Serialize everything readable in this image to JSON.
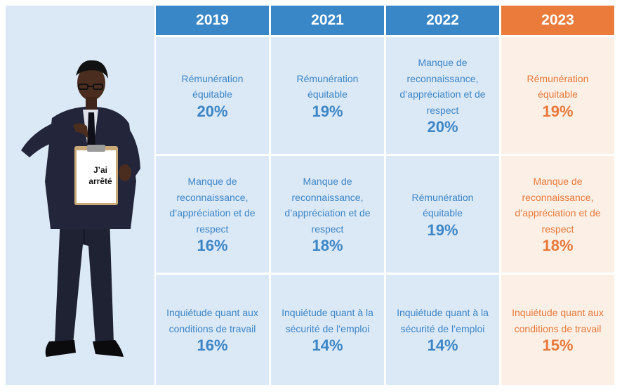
{
  "sign": {
    "line1": "J’ai",
    "line2": "arrêté"
  },
  "colors": {
    "blue_header": "#3a87c7",
    "blue_cell": "#dbe8f6",
    "blue_text": "#3c86c6",
    "orange_header": "#ea7b3a",
    "orange_cell": "#fcefe5",
    "orange_text": "#e9793a"
  },
  "columns": [
    {
      "year": "2019",
      "highlight": false,
      "cells": [
        {
          "label": [
            "Rémunération",
            "équitable"
          ],
          "percent": "20%"
        },
        {
          "label": [
            "Manque de",
            "reconnaissance,",
            "d’appréciation et de",
            "respect"
          ],
          "percent": "16%"
        },
        {
          "label": [
            "Inquiétude quant aux",
            "conditions de travail"
          ],
          "percent": "16%"
        }
      ]
    },
    {
      "year": "2021",
      "highlight": false,
      "cells": [
        {
          "label": [
            "Rémunération",
            "équitable"
          ],
          "percent": "19%"
        },
        {
          "label": [
            "Manque de",
            "reconnaissance,",
            "d’appréciation et de",
            "respect"
          ],
          "percent": "18%"
        },
        {
          "label": [
            "Inquiétude quant à la",
            "sécurité de l’emploi"
          ],
          "percent": "14%"
        }
      ]
    },
    {
      "year": "2022",
      "highlight": false,
      "cells": [
        {
          "label": [
            "Manque de",
            "reconnaissance,",
            "d’appréciation et de",
            "respect"
          ],
          "percent": "20%"
        },
        {
          "label": [
            "Rémunération",
            "équitable"
          ],
          "percent": "19%"
        },
        {
          "label": [
            "Inquiétude quant à la",
            "sécurité de l’emploi"
          ],
          "percent": "14%"
        }
      ]
    },
    {
      "year": "2023",
      "highlight": true,
      "cells": [
        {
          "label": [
            "Rémunération",
            "équitable"
          ],
          "percent": "19%"
        },
        {
          "label": [
            "Manque de",
            "reconnaissance,",
            "d’appréciation et de",
            "respect"
          ],
          "percent": "18%"
        },
        {
          "label": [
            "Inquiétude quant aux",
            "conditions de travail"
          ],
          "percent": "15%"
        }
      ]
    }
  ]
}
